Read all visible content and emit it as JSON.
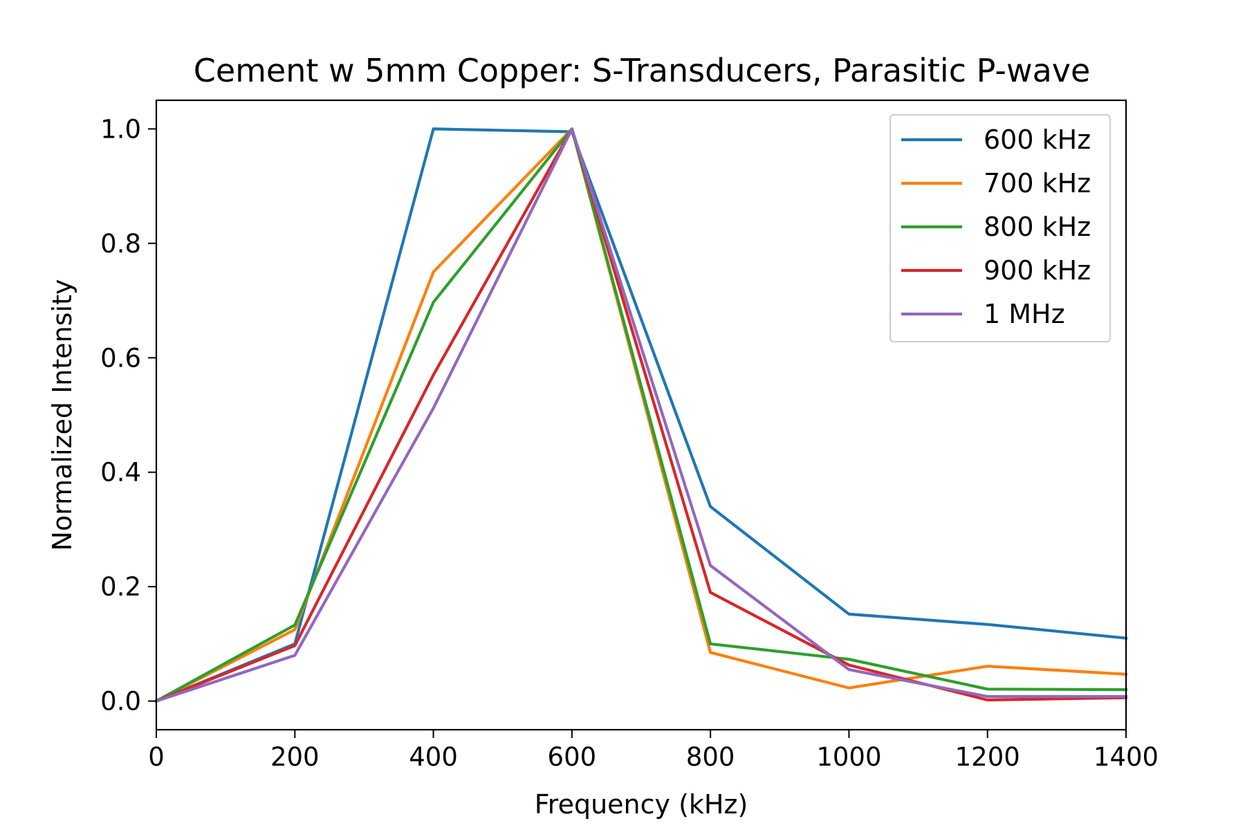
{
  "chart_data": {
    "type": "line",
    "title": "Cement w 5mm Copper: S-Transducers, Parasitic P-wave",
    "xlabel": "Frequency (kHz)",
    "ylabel": "Normalized Intensity",
    "xlim": [
      0,
      1400
    ],
    "ylim": [
      -0.05,
      1.05
    ],
    "xticks": [
      0,
      200,
      400,
      600,
      800,
      1000,
      1200,
      1400
    ],
    "xtick_labels": [
      "0",
      "200",
      "400",
      "600",
      "800",
      "1000",
      "1200",
      "1400"
    ],
    "yticks": [
      0.0,
      0.2,
      0.4,
      0.6,
      0.8,
      1.0
    ],
    "ytick_labels": [
      "0.0",
      "0.2",
      "0.4",
      "0.6",
      "0.8",
      "1.0"
    ],
    "grid": false,
    "legend_position": "top-right",
    "x": [
      0,
      200,
      400,
      600,
      800,
      1000,
      1200,
      1400
    ],
    "series": [
      {
        "name": "600 kHz",
        "color": "#1f77b4",
        "values": [
          0.0,
          0.1,
          1.0,
          0.995,
          0.34,
          0.152,
          0.134,
          0.11
        ]
      },
      {
        "name": "700 kHz",
        "color": "#ff7f0e",
        "values": [
          0.0,
          0.125,
          0.75,
          1.0,
          0.085,
          0.023,
          0.061,
          0.047
        ]
      },
      {
        "name": "800 kHz",
        "color": "#2ca02c",
        "values": [
          0.0,
          0.133,
          0.697,
          1.0,
          0.1,
          0.073,
          0.021,
          0.02
        ]
      },
      {
        "name": "900 kHz",
        "color": "#d62728",
        "values": [
          0.0,
          0.097,
          0.57,
          1.0,
          0.19,
          0.063,
          0.002,
          0.006
        ]
      },
      {
        "name": "1 MHz",
        "color": "#9467bd",
        "values": [
          0.0,
          0.08,
          0.512,
          1.0,
          0.237,
          0.055,
          0.008,
          0.008
        ]
      }
    ]
  }
}
